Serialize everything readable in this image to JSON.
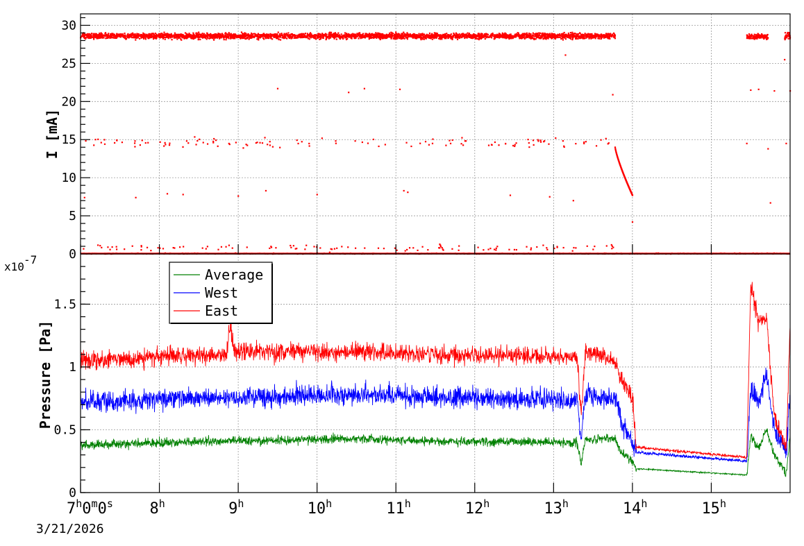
{
  "chart_data": [
    {
      "type": "scatter",
      "panel": "top",
      "ylabel": "I [mA]",
      "ylim": [
        0,
        31.5
      ],
      "yticks": [
        "0",
        "5",
        "10",
        "15",
        "20",
        "25",
        "30"
      ],
      "ytick_values": [
        0,
        5,
        10,
        15,
        20,
        25,
        30
      ],
      "grid": true,
      "x_range_hours": [
        7.0,
        16.0
      ],
      "color": "#ff0000",
      "series": [
        {
          "bands": [
            {
              "from": 7.0,
              "to": 13.78,
              "level": 28.6,
              "spread": 0.35
            },
            {
              "from": 15.45,
              "to": 15.72,
              "level": 28.5,
              "spread": 0.3
            },
            {
              "from": 15.93,
              "to": 16.0,
              "level": 28.7,
              "spread": 0.5
            }
          ],
          "sparse_levels": [
            {
              "from": 7.0,
              "to": 13.78,
              "level": 14.6,
              "spread": 0.6,
              "count": 120
            },
            {
              "from": 7.0,
              "to": 13.78,
              "level": 0.8,
              "spread": 0.4,
              "count": 110
            },
            {
              "from": 7.0,
              "to": 16.0,
              "level": 0.05,
              "spread": 0.05,
              "count": 400
            }
          ],
          "decay": {
            "from": 13.78,
            "to": 14.0,
            "start": 14.0,
            "end": 7.7
          },
          "points": [
            [
              7.05,
              7.4
            ],
            [
              7.7,
              7.4
            ],
            [
              8.1,
              7.9
            ],
            [
              8.3,
              7.8
            ],
            [
              9.0,
              7.6
            ],
            [
              9.35,
              8.3
            ],
            [
              10.0,
              7.8
            ],
            [
              11.1,
              8.3
            ],
            [
              11.15,
              8.1
            ],
            [
              12.45,
              7.7
            ],
            [
              12.95,
              7.5
            ],
            [
              13.25,
              7.0
            ],
            [
              9.5,
              21.7
            ],
            [
              10.4,
              21.2
            ],
            [
              10.6,
              21.7
            ],
            [
              11.05,
              21.6
            ],
            [
              13.75,
              20.9
            ],
            [
              13.15,
              26.1
            ],
            [
              14.0,
              4.2
            ],
            [
              15.45,
              14.5
            ],
            [
              15.5,
              21.5
            ],
            [
              15.6,
              21.6
            ],
            [
              15.72,
              13.8
            ],
            [
              15.75,
              6.7
            ],
            [
              15.95,
              14.5
            ],
            [
              15.93,
              25.5
            ],
            [
              16.0,
              21.4
            ],
            [
              15.8,
              21.4
            ]
          ]
        }
      ]
    },
    {
      "type": "line",
      "panel": "bottom",
      "ylabel": "Pressure [Pa]",
      "y_exponent": "x10",
      "y_exponent_power": "-7",
      "ylim": [
        0,
        1.9
      ],
      "yticks": [
        "0",
        "0.5",
        "1",
        "1.5"
      ],
      "ytick_values": [
        0,
        0.5,
        1.0,
        1.5
      ],
      "grid": true,
      "x_range_hours": [
        7.0,
        16.0
      ],
      "xticks": [
        "7",
        "8",
        "9",
        "10",
        "11",
        "12",
        "13",
        "14",
        "15"
      ],
      "xtick_sup": [
        "h",
        "h",
        "h",
        "h",
        "h",
        "h",
        "h",
        "h",
        "h"
      ],
      "first_xtick_extra": {
        "m": "0",
        "m_sup": "m",
        "s": "0",
        "s_sup": "s"
      },
      "date_label": "3/21/2026",
      "legend_position": "top-left",
      "series": [
        {
          "name": "Average",
          "color": "#008000",
          "anchors": [
            [
              7.0,
              0.38
            ],
            [
              8.9,
              0.41
            ],
            [
              10.5,
              0.43
            ],
            [
              11.5,
              0.41
            ],
            [
              13.3,
              0.4
            ],
            [
              13.35,
              0.22
            ],
            [
              13.4,
              0.42
            ],
            [
              13.78,
              0.43
            ],
            [
              13.85,
              0.33
            ],
            [
              14.0,
              0.25
            ],
            [
              14.05,
              0.19
            ],
            [
              15.45,
              0.14
            ],
            [
              15.5,
              0.45
            ],
            [
              15.6,
              0.35
            ],
            [
              15.7,
              0.5
            ],
            [
              15.8,
              0.3
            ],
            [
              15.95,
              0.15
            ],
            [
              16.0,
              0.45
            ]
          ],
          "noise": 0.035
        },
        {
          "name": "West",
          "color": "#0000ff",
          "anchors": [
            [
              7.0,
              0.72
            ],
            [
              8.9,
              0.76
            ],
            [
              10.5,
              0.78
            ],
            [
              11.5,
              0.76
            ],
            [
              13.3,
              0.74
            ],
            [
              13.35,
              0.4
            ],
            [
              13.4,
              0.76
            ],
            [
              13.78,
              0.75
            ],
            [
              13.85,
              0.6
            ],
            [
              14.0,
              0.4
            ],
            [
              14.05,
              0.32
            ],
            [
              15.45,
              0.25
            ],
            [
              15.5,
              0.85
            ],
            [
              15.6,
              0.7
            ],
            [
              15.7,
              0.95
            ],
            [
              15.8,
              0.5
            ],
            [
              15.95,
              0.33
            ],
            [
              16.0,
              0.8
            ]
          ],
          "noise": 0.08
        },
        {
          "name": "East",
          "color": "#ff0000",
          "anchors": [
            [
              7.0,
              1.05
            ],
            [
              8.85,
              1.1
            ],
            [
              8.9,
              1.35
            ],
            [
              8.95,
              1.12
            ],
            [
              10.5,
              1.12
            ],
            [
              11.5,
              1.1
            ],
            [
              13.3,
              1.08
            ],
            [
              13.35,
              0.6
            ],
            [
              13.4,
              1.12
            ],
            [
              13.78,
              1.05
            ],
            [
              13.85,
              0.9
            ],
            [
              14.0,
              0.75
            ],
            [
              14.05,
              0.36
            ],
            [
              15.45,
              0.28
            ],
            [
              15.5,
              1.65
            ],
            [
              15.6,
              1.35
            ],
            [
              15.7,
              1.4
            ],
            [
              15.8,
              0.6
            ],
            [
              15.95,
              0.35
            ],
            [
              16.0,
              1.35
            ]
          ],
          "noise": 0.07
        }
      ]
    }
  ]
}
